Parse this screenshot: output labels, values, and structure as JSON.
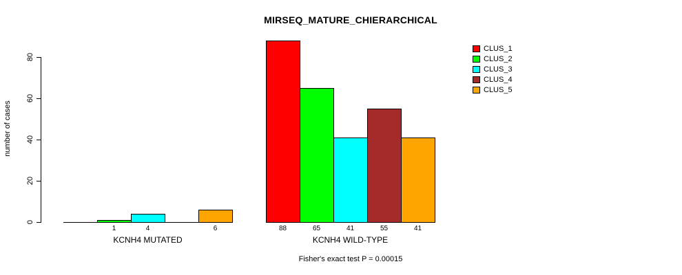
{
  "chart_data": {
    "type": "bar",
    "title": "MIRSEQ_MATURE_CHIERARCHICAL",
    "ylabel": "number of cases",
    "xlabel": "",
    "annotation": "Fisher's exact test P = 0.00015",
    "ylim": [
      0,
      88
    ],
    "yticks": [
      0,
      20,
      40,
      60,
      80
    ],
    "grid": false,
    "legend_position": "top-right",
    "background_color": "#ffffff",
    "axis_color": "#000000",
    "categories": [
      "KCNH4 MUTATED",
      "KCNH4 WILD-TYPE"
    ],
    "series": [
      {
        "name": "CLUS_1",
        "color": "#FF0000",
        "values": [
          0,
          88
        ]
      },
      {
        "name": "CLUS_2",
        "color": "#00FF00",
        "values": [
          1,
          65
        ]
      },
      {
        "name": "CLUS_3",
        "color": "#00FFFF",
        "values": [
          4,
          41
        ]
      },
      {
        "name": "CLUS_4",
        "color": "#A52A2A",
        "values": [
          0,
          55
        ]
      },
      {
        "name": "CLUS_5",
        "color": "#FFA500",
        "values": [
          6,
          41
        ]
      }
    ],
    "bar_value_labels": [
      [
        "",
        "1",
        "4",
        "",
        "6"
      ],
      [
        "88",
        "65",
        "41",
        "55",
        "41"
      ]
    ],
    "legend_items": [
      "CLUS_1",
      "CLUS_2",
      "CLUS_3",
      "CLUS_4",
      "CLUS_5"
    ]
  }
}
